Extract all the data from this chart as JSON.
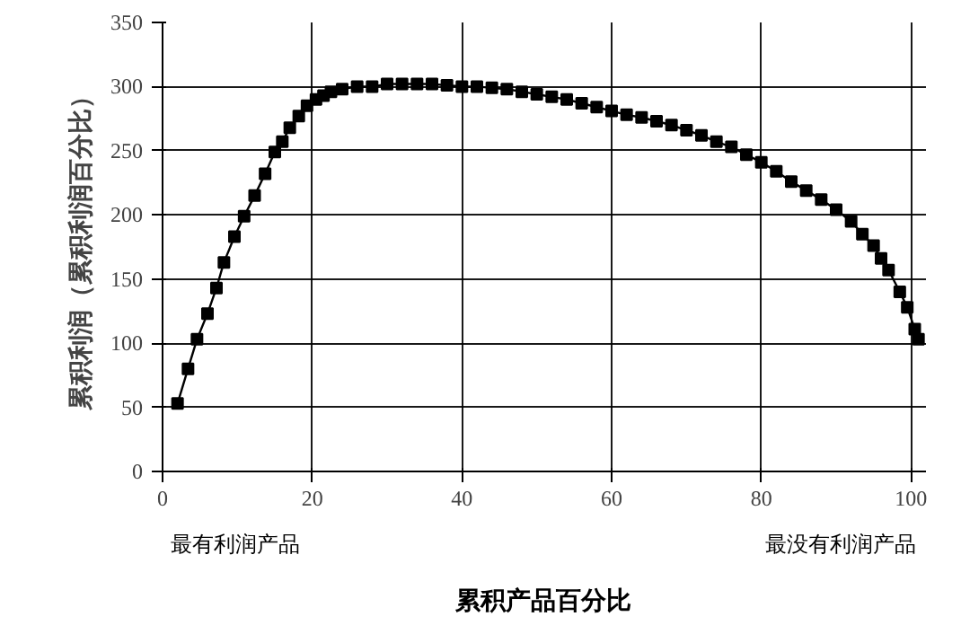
{
  "chart_data": {
    "type": "line",
    "xlabel": "累积产品百分比",
    "ylabel": "累积利润（累积利润百分比）",
    "annotations": [
      "最有利润产品",
      "最没有利润产品"
    ],
    "x": [
      2,
      3.4,
      4.6,
      6,
      7.2,
      8.2,
      9.6,
      10.9,
      12.3,
      13.7,
      15,
      16,
      17,
      18.2,
      19.3,
      20.5,
      21.5,
      22.5,
      24,
      26,
      28,
      30,
      32,
      34,
      36,
      38,
      40,
      42,
      44,
      46,
      48,
      50,
      52,
      54,
      56,
      58,
      60,
      62,
      64,
      66,
      68,
      70,
      72,
      74,
      76,
      78,
      80,
      82,
      84,
      86,
      88,
      90,
      92,
      93.5,
      95,
      96,
      97,
      98.5,
      99.5,
      100.5,
      101
    ],
    "series": [
      {
        "color": "#000000",
        "values": [
          53,
          80,
          103,
          123,
          143,
          163,
          183,
          199,
          215,
          232,
          249,
          257,
          268,
          277,
          285,
          290,
          293,
          296,
          298,
          300,
          300,
          302,
          302,
          302,
          302,
          301,
          300,
          300,
          299,
          298,
          296,
          294,
          292,
          290,
          287,
          284,
          281,
          278,
          276,
          273,
          270,
          266,
          262,
          257,
          253,
          247,
          241,
          234,
          226,
          219,
          212,
          204,
          195,
          185,
          176,
          166,
          157,
          140,
          128,
          111,
          103
        ]
      }
    ],
    "xlim": [
      0,
      102
    ],
    "ylim": [
      0,
      350
    ],
    "xticks": [
      0,
      20,
      40,
      60,
      80,
      100
    ],
    "yticks": [
      0,
      50,
      100,
      150,
      200,
      250,
      300,
      350
    ],
    "grid": true,
    "marker": "square",
    "line_style": "solid"
  }
}
